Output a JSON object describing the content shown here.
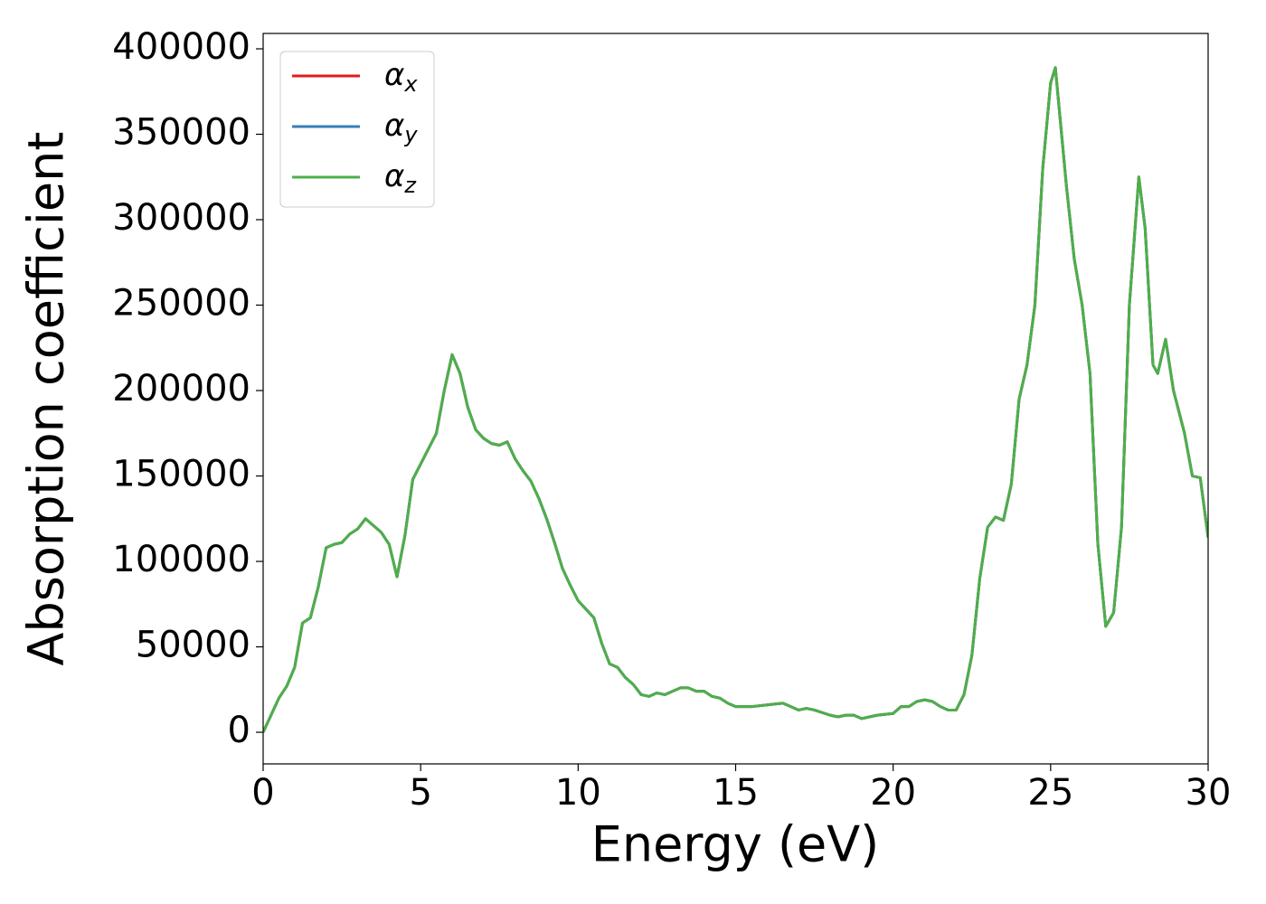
{
  "chart_data": {
    "type": "line",
    "x_label": "Energy (eV)",
    "y_label": "Absorption coefficient",
    "x": [
      0,
      0.25,
      0.5,
      0.75,
      1.0,
      1.25,
      1.5,
      1.75,
      2.0,
      2.25,
      2.5,
      2.75,
      3.0,
      3.25,
      3.5,
      3.75,
      4.0,
      4.25,
      4.5,
      4.75,
      5.0,
      5.5,
      5.75,
      6.0,
      6.25,
      6.5,
      6.75,
      7.0,
      7.25,
      7.5,
      7.75,
      8.0,
      8.25,
      8.5,
      8.75,
      9.0,
      9.25,
      9.5,
      9.75,
      10.0,
      10.25,
      10.5,
      10.75,
      11.0,
      11.25,
      11.5,
      11.75,
      12.0,
      12.25,
      12.5,
      12.75,
      13.0,
      13.25,
      13.5,
      13.75,
      14.0,
      14.25,
      14.5,
      14.75,
      15.0,
      15.5,
      16.0,
      16.5,
      16.75,
      17.0,
      17.25,
      17.5,
      18.0,
      18.25,
      18.5,
      18.75,
      19.0,
      19.25,
      19.5,
      20.0,
      20.25,
      20.5,
      20.75,
      21.0,
      21.25,
      21.5,
      21.75,
      22.0,
      22.25,
      22.5,
      22.75,
      23.0,
      23.25,
      23.5,
      23.75,
      24.0,
      24.25,
      24.5,
      24.75,
      25.0,
      25.15,
      25.5,
      25.75,
      26.0,
      26.25,
      26.5,
      26.75,
      27.0,
      27.25,
      27.5,
      27.8,
      28.0,
      28.25,
      28.4,
      28.65,
      28.9,
      29.25,
      29.5,
      29.75,
      30.0
    ],
    "series": [
      {
        "name": "αx",
        "color": "#e41a1c",
        "values": [
          0,
          10000,
          20000,
          27000,
          38000,
          64000,
          67000,
          85000,
          108000,
          110000,
          111000,
          116000,
          119000,
          125000,
          121000,
          117000,
          110000,
          91000,
          115000,
          148000,
          157000,
          175000,
          200000,
          221000,
          210000,
          190000,
          177000,
          172000,
          169000,
          168000,
          170000,
          160000,
          153000,
          147000,
          137000,
          125000,
          111000,
          96000,
          86000,
          77000,
          72000,
          67000,
          52000,
          40000,
          38000,
          32000,
          28000,
          22000,
          21000,
          23000,
          22000,
          24000,
          26000,
          26000,
          24000,
          24000,
          21000,
          20000,
          17000,
          15000,
          15000,
          16000,
          17000,
          15000,
          13000,
          14000,
          13000,
          10000,
          9000,
          10000,
          10000,
          8000,
          9000,
          10000,
          11000,
          15000,
          15000,
          18000,
          19000,
          18000,
          15000,
          13000,
          13000,
          22000,
          45000,
          90000,
          120000,
          126000,
          124000,
          145000,
          195000,
          215000,
          250000,
          330000,
          380000,
          389000,
          320000,
          277000,
          250000,
          210000,
          110000,
          62000,
          70000,
          120000,
          250000,
          325000,
          295000,
          215000,
          210000,
          230000,
          200000,
          175000,
          150000,
          149000,
          114000
        ]
      },
      {
        "name": "αy",
        "color": "#377eb8",
        "values": [
          0,
          10000,
          20000,
          27000,
          38000,
          64000,
          67000,
          85000,
          108000,
          110000,
          111000,
          116000,
          119000,
          125000,
          121000,
          117000,
          110000,
          91000,
          115000,
          148000,
          157000,
          175000,
          200000,
          221000,
          210000,
          190000,
          177000,
          172000,
          169000,
          168000,
          170000,
          160000,
          153000,
          147000,
          137000,
          125000,
          111000,
          96000,
          86000,
          77000,
          72000,
          67000,
          52000,
          40000,
          38000,
          32000,
          28000,
          22000,
          21000,
          23000,
          22000,
          24000,
          26000,
          26000,
          24000,
          24000,
          21000,
          20000,
          17000,
          15000,
          15000,
          16000,
          17000,
          15000,
          13000,
          14000,
          13000,
          10000,
          9000,
          10000,
          10000,
          8000,
          9000,
          10000,
          11000,
          15000,
          15000,
          18000,
          19000,
          18000,
          15000,
          13000,
          13000,
          22000,
          45000,
          90000,
          120000,
          126000,
          124000,
          145000,
          195000,
          215000,
          250000,
          330000,
          380000,
          389000,
          320000,
          277000,
          250000,
          210000,
          110000,
          62000,
          70000,
          120000,
          250000,
          325000,
          295000,
          215000,
          210000,
          230000,
          200000,
          175000,
          150000,
          149000,
          114000
        ]
      },
      {
        "name": "αz",
        "color": "#4daf4a",
        "values": [
          0,
          10000,
          20000,
          27000,
          38000,
          64000,
          67000,
          85000,
          108000,
          110000,
          111000,
          116000,
          119000,
          125000,
          121000,
          117000,
          110000,
          91000,
          115000,
          148000,
          157000,
          175000,
          200000,
          221000,
          210000,
          190000,
          177000,
          172000,
          169000,
          168000,
          170000,
          160000,
          153000,
          147000,
          137000,
          125000,
          111000,
          96000,
          86000,
          77000,
          72000,
          67000,
          52000,
          40000,
          38000,
          32000,
          28000,
          22000,
          21000,
          23000,
          22000,
          24000,
          26000,
          26000,
          24000,
          24000,
          21000,
          20000,
          17000,
          15000,
          15000,
          16000,
          17000,
          15000,
          13000,
          14000,
          13000,
          10000,
          9000,
          10000,
          10000,
          8000,
          9000,
          10000,
          11000,
          15000,
          15000,
          18000,
          19000,
          18000,
          15000,
          13000,
          13000,
          22000,
          45000,
          90000,
          120000,
          126000,
          124000,
          145000,
          195000,
          215000,
          250000,
          330000,
          380000,
          389000,
          320000,
          277000,
          250000,
          210000,
          110000,
          62000,
          70000,
          120000,
          250000,
          325000,
          295000,
          215000,
          210000,
          230000,
          200000,
          175000,
          150000,
          149000,
          114000
        ]
      }
    ],
    "xlim": [
      0,
      30
    ],
    "ylim": [
      -18500,
      409000
    ],
    "xticks": [
      0,
      5,
      10,
      15,
      20,
      25,
      30
    ],
    "yticks": [
      0,
      50000,
      100000,
      150000,
      200000,
      250000,
      300000,
      350000,
      400000
    ],
    "legend": "upper left",
    "grid": false
  }
}
